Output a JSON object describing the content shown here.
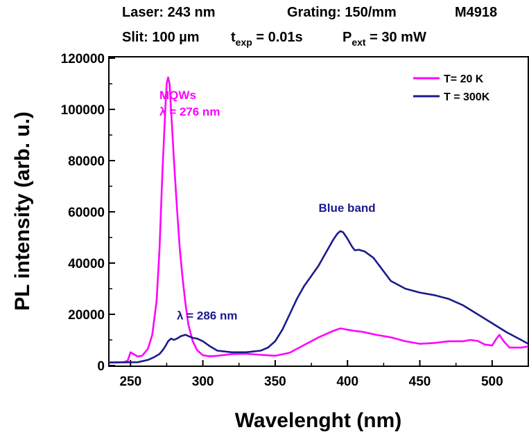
{
  "header": {
    "line1": {
      "laser": "Laser: 243 nm",
      "grating": "Grating: 150/mm",
      "sample": "M4918"
    },
    "line2": {
      "slit": "Slit: 100 µm",
      "texp_symbol": "t",
      "texp_sub": "exp",
      "texp_value": " = 0.01s",
      "pext_symbol": "P",
      "pext_sub": "ext",
      "pext_value": " = 30 mW"
    }
  },
  "chart_data": {
    "type": "line",
    "xlabel": "Wavelenght (nm)",
    "ylabel": "PL intensity (arb. u.)",
    "xlim": [
      235,
      525
    ],
    "ylim": [
      0,
      120000
    ],
    "xticks": [
      250,
      300,
      350,
      400,
      450,
      500
    ],
    "yticks": [
      0,
      20000,
      40000,
      60000,
      80000,
      100000,
      120000
    ],
    "grid": false,
    "legend_position": "top-right",
    "series": [
      {
        "name": "T= 20 K",
        "color": "#ff00ff",
        "x": [
          235,
          245,
          248,
          250,
          252,
          255,
          258,
          262,
          265,
          268,
          270,
          272,
          274,
          275,
          276,
          277,
          278,
          280,
          282,
          284,
          286,
          288,
          290,
          293,
          296,
          300,
          305,
          310,
          320,
          330,
          340,
          350,
          360,
          370,
          380,
          390,
          395,
          398,
          400,
          405,
          410,
          420,
          430,
          440,
          450,
          460,
          470,
          480,
          485,
          490,
          495,
          500,
          503,
          505,
          508,
          512,
          520,
          525
        ],
        "y": [
          1200,
          1300,
          1800,
          5200,
          4500,
          3500,
          3800,
          6500,
          12000,
          25000,
          45000,
          75000,
          100000,
          110000,
          112500,
          110000,
          100000,
          80000,
          62000,
          46000,
          34000,
          24000,
          16000,
          9500,
          6000,
          4000,
          3600,
          3800,
          4500,
          4600,
          4200,
          3800,
          5000,
          8000,
          11000,
          13500,
          14500,
          14200,
          14000,
          13500,
          13200,
          12000,
          11000,
          9500,
          8500,
          8800,
          9500,
          9500,
          10000,
          9600,
          8200,
          7800,
          10500,
          12000,
          9500,
          7000,
          7000,
          7500
        ]
      },
      {
        "name": "T = 300K",
        "color": "#1a1a8c",
        "x": [
          235,
          255,
          262,
          266,
          270,
          272,
          274,
          276,
          278,
          280,
          282,
          285,
          288,
          290,
          293,
          296,
          300,
          305,
          310,
          320,
          330,
          340,
          345,
          350,
          355,
          360,
          365,
          370,
          375,
          380,
          385,
          390,
          393,
          395,
          397,
          400,
          403,
          405,
          408,
          412,
          418,
          422,
          430,
          440,
          450,
          460,
          470,
          480,
          490,
          500,
          510,
          520,
          525
        ],
        "y": [
          1200,
          1300,
          2200,
          3200,
          4500,
          5800,
          7500,
          9500,
          10500,
          10000,
          10500,
          11500,
          12000,
          11500,
          10800,
          10500,
          9500,
          7500,
          5800,
          5200,
          5200,
          5800,
          7000,
          9500,
          14000,
          20000,
          26000,
          31000,
          35000,
          39000,
          44000,
          49000,
          51500,
          52500,
          52000,
          49500,
          46500,
          45000,
          45200,
          44500,
          42000,
          39000,
          33000,
          30000,
          28500,
          27500,
          26000,
          23500,
          20000,
          16500,
          13000,
          10000,
          8500
        ]
      }
    ],
    "annotations": [
      {
        "lines": [
          "MQWs",
          "λ = 276 nm"
        ],
        "color": "#ff00ff",
        "x": 270,
        "y": 104000
      },
      {
        "lines": [
          "Blue band"
        ],
        "color": "#1a1a8c",
        "x": 380,
        "y": 60000
      },
      {
        "lines": [
          "λ = 286 nm"
        ],
        "color": "#1a1a8c",
        "x": 282,
        "y": 18000
      }
    ]
  }
}
